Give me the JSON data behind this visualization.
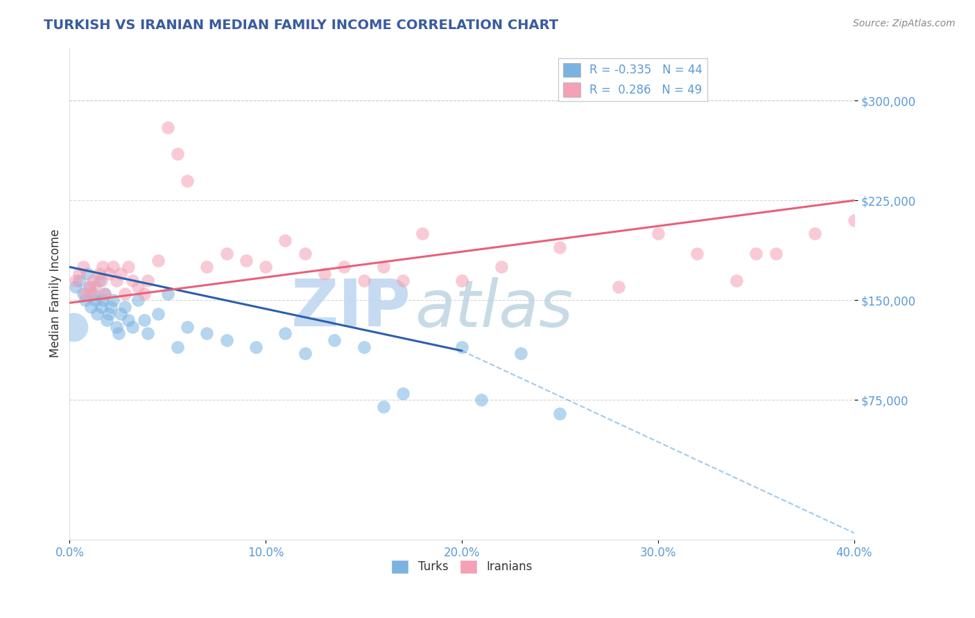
{
  "title": "TURKISH VS IRANIAN MEDIAN FAMILY INCOME CORRELATION CHART",
  "source_text": "Source: ZipAtlas.com",
  "ylabel": "Median Family Income",
  "xlim": [
    0.0,
    0.4
  ],
  "ylim": [
    -30000,
    340000
  ],
  "xtick_labels": [
    "0.0%",
    "10.0%",
    "20.0%",
    "30.0%",
    "40.0%"
  ],
  "xtick_values": [
    0.0,
    0.1,
    0.2,
    0.3,
    0.4
  ],
  "ytick_values": [
    75000,
    150000,
    225000,
    300000
  ],
  "ytick_labels": [
    "$75,000",
    "$150,000",
    "$225,000",
    "$300,000"
  ],
  "title_color": "#3a5ba0",
  "axis_label_color": "#5b9bd5",
  "grid_color": "#cccccc",
  "watermark_zip": "ZIP",
  "watermark_atlas": "atlas",
  "watermark_color_zip": "#c0d8f0",
  "watermark_color_atlas": "#b0ccdd",
  "legend_R_turks": "-0.335",
  "legend_N_turks": "44",
  "legend_R_iranians": "0.286",
  "legend_N_iranians": "49",
  "turks_color": "#7ab3e0",
  "iranians_color": "#f4a0b5",
  "trend_turks_solid_color": "#2b5fad",
  "trend_turks_dash_color": "#7ab3e0",
  "trend_iranians_color": "#e8607a",
  "turks_x": [
    0.003,
    0.005,
    0.007,
    0.008,
    0.009,
    0.01,
    0.011,
    0.012,
    0.013,
    0.014,
    0.015,
    0.016,
    0.017,
    0.018,
    0.019,
    0.02,
    0.021,
    0.022,
    0.024,
    0.025,
    0.026,
    0.028,
    0.03,
    0.032,
    0.035,
    0.038,
    0.04,
    0.045,
    0.05,
    0.055,
    0.06,
    0.07,
    0.08,
    0.095,
    0.11,
    0.12,
    0.135,
    0.15,
    0.16,
    0.17,
    0.2,
    0.21,
    0.23,
    0.25
  ],
  "turks_y": [
    160000,
    165000,
    155000,
    150000,
    170000,
    160000,
    145000,
    155000,
    150000,
    140000,
    165000,
    145000,
    150000,
    155000,
    135000,
    140000,
    145000,
    150000,
    130000,
    125000,
    140000,
    145000,
    135000,
    130000,
    150000,
    135000,
    125000,
    140000,
    155000,
    115000,
    130000,
    125000,
    120000,
    115000,
    125000,
    110000,
    120000,
    115000,
    70000,
    80000,
    115000,
    75000,
    110000,
    65000
  ],
  "iranians_x": [
    0.003,
    0.005,
    0.007,
    0.008,
    0.01,
    0.011,
    0.012,
    0.013,
    0.015,
    0.016,
    0.017,
    0.018,
    0.02,
    0.022,
    0.024,
    0.026,
    0.028,
    0.03,
    0.032,
    0.035,
    0.038,
    0.04,
    0.045,
    0.05,
    0.055,
    0.06,
    0.07,
    0.08,
    0.09,
    0.1,
    0.11,
    0.12,
    0.13,
    0.14,
    0.15,
    0.16,
    0.17,
    0.18,
    0.2,
    0.22,
    0.25,
    0.28,
    0.3,
    0.32,
    0.34,
    0.35,
    0.36,
    0.38,
    0.4
  ],
  "iranians_y": [
    165000,
    170000,
    175000,
    155000,
    160000,
    155000,
    165000,
    160000,
    170000,
    165000,
    175000,
    155000,
    170000,
    175000,
    165000,
    170000,
    155000,
    175000,
    165000,
    160000,
    155000,
    165000,
    180000,
    280000,
    260000,
    240000,
    175000,
    185000,
    180000,
    175000,
    195000,
    185000,
    170000,
    175000,
    165000,
    175000,
    165000,
    200000,
    165000,
    175000,
    190000,
    160000,
    200000,
    185000,
    165000,
    185000,
    185000,
    200000,
    210000
  ],
  "trend_iranians_x0": 0.0,
  "trend_iranians_y0": 148000,
  "trend_iranians_x1": 0.4,
  "trend_iranians_y1": 225000,
  "trend_turks_solid_x0": 0.0,
  "trend_turks_solid_y0": 175000,
  "trend_turks_solid_x1": 0.2,
  "trend_turks_solid_y1": 112000,
  "trend_turks_dash_x0": 0.2,
  "trend_turks_dash_y0": 112000,
  "trend_turks_dash_x1": 0.4,
  "trend_turks_dash_y1": -25000
}
